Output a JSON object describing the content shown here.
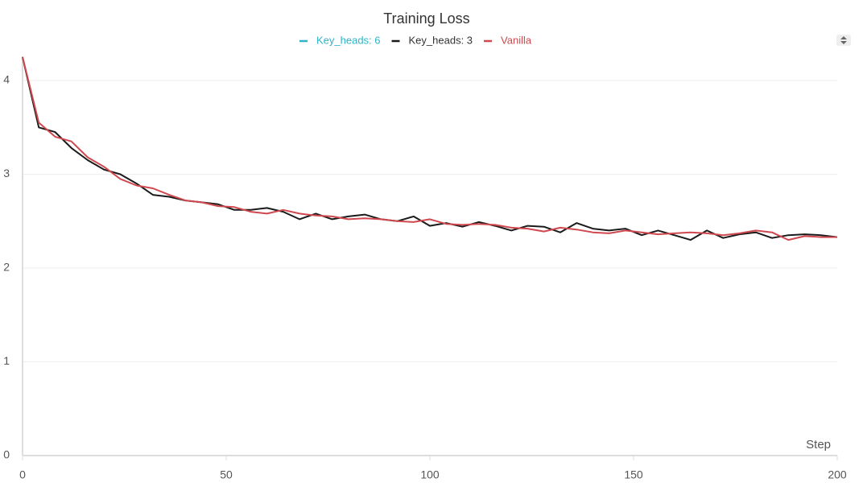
{
  "chart_data": {
    "type": "line",
    "title": "Training Loss",
    "x_label": "Step",
    "x": [
      0,
      4,
      8,
      12,
      16,
      20,
      24,
      28,
      32,
      36,
      40,
      44,
      48,
      52,
      56,
      60,
      64,
      68,
      72,
      76,
      80,
      84,
      88,
      92,
      96,
      100,
      104,
      108,
      112,
      116,
      120,
      124,
      128,
      132,
      136,
      140,
      144,
      148,
      152,
      156,
      160,
      164,
      168,
      172,
      176,
      180,
      184,
      188,
      192,
      196,
      200
    ],
    "series": [
      {
        "name": "Key_heads: 6",
        "color": "#2fb4c8",
        "values": [
          null,
          null,
          null,
          null,
          null,
          null,
          null,
          null,
          null,
          null,
          null,
          null,
          null,
          null,
          null,
          null,
          null,
          null,
          null,
          null,
          null,
          null,
          null,
          null,
          null,
          null,
          null,
          null,
          null,
          null,
          null,
          null,
          null,
          null,
          null,
          null,
          null,
          null,
          null,
          null,
          null,
          null,
          null,
          null,
          null,
          null,
          null,
          null,
          null,
          null,
          null
        ]
      },
      {
        "name": "Key_heads: 3",
        "color": "#1a1a1a",
        "values": [
          4.25,
          3.5,
          3.45,
          3.28,
          3.15,
          3.05,
          3.0,
          2.9,
          2.78,
          2.76,
          2.72,
          2.7,
          2.68,
          2.62,
          2.62,
          2.64,
          2.6,
          2.52,
          2.58,
          2.52,
          2.55,
          2.57,
          2.52,
          2.5,
          2.55,
          2.45,
          2.48,
          2.44,
          2.49,
          2.45,
          2.4,
          2.45,
          2.44,
          2.38,
          2.48,
          2.42,
          2.4,
          2.42,
          2.35,
          2.4,
          2.35,
          2.3,
          2.4,
          2.32,
          2.36,
          2.38,
          2.32,
          2.35,
          2.36,
          2.35,
          2.33
        ]
      },
      {
        "name": "Vanilla",
        "color": "#d0484f",
        "values": [
          4.25,
          3.55,
          3.4,
          3.35,
          3.18,
          3.08,
          2.95,
          2.88,
          2.85,
          2.78,
          2.72,
          2.7,
          2.66,
          2.65,
          2.6,
          2.58,
          2.62,
          2.58,
          2.56,
          2.55,
          2.52,
          2.53,
          2.52,
          2.5,
          2.49,
          2.52,
          2.47,
          2.46,
          2.47,
          2.46,
          2.43,
          2.42,
          2.39,
          2.43,
          2.41,
          2.38,
          2.37,
          2.4,
          2.38,
          2.36,
          2.37,
          2.38,
          2.37,
          2.35,
          2.37,
          2.4,
          2.38,
          2.3,
          2.34,
          2.33,
          2.33
        ]
      }
    ],
    "xlim": [
      0,
      200
    ],
    "xticks": [
      0,
      50,
      100,
      150,
      200
    ],
    "ylim": [
      0,
      4.25
    ],
    "yticks": [
      0,
      1,
      2,
      3,
      4
    ],
    "grid": true
  }
}
